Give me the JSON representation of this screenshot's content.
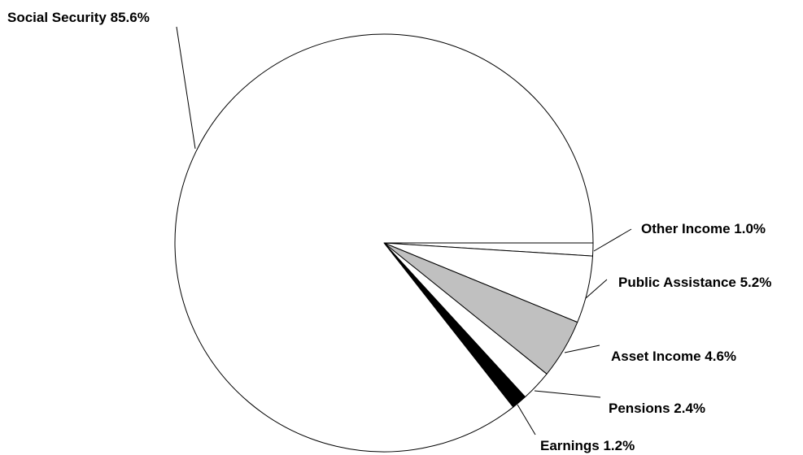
{
  "chart_data": {
    "type": "pie",
    "title": "",
    "slices": [
      {
        "name": "Other Income",
        "value": 1.0,
        "display": "Other Income 1.0%",
        "color": "#ffffff"
      },
      {
        "name": "Public Assistance",
        "value": 5.2,
        "display": "Public Assistance 5.2%",
        "color": "#ffffff"
      },
      {
        "name": "Asset Income",
        "value": 4.6,
        "display": "Asset Income 4.6%",
        "color": "#c0c0c0"
      },
      {
        "name": "Pensions",
        "value": 2.4,
        "display": "Pensions 2.4%",
        "color": "#ffffff"
      },
      {
        "name": "Earnings",
        "value": 1.2,
        "display": "Earnings 1.2%",
        "color": "#000000"
      },
      {
        "name": "Social Security",
        "value": 85.6,
        "display": "Social Security 85.6%",
        "color": "#ffffff"
      }
    ],
    "start_angle_deg": 0,
    "direction": "clockwise",
    "unit": "%",
    "legend": "none"
  }
}
